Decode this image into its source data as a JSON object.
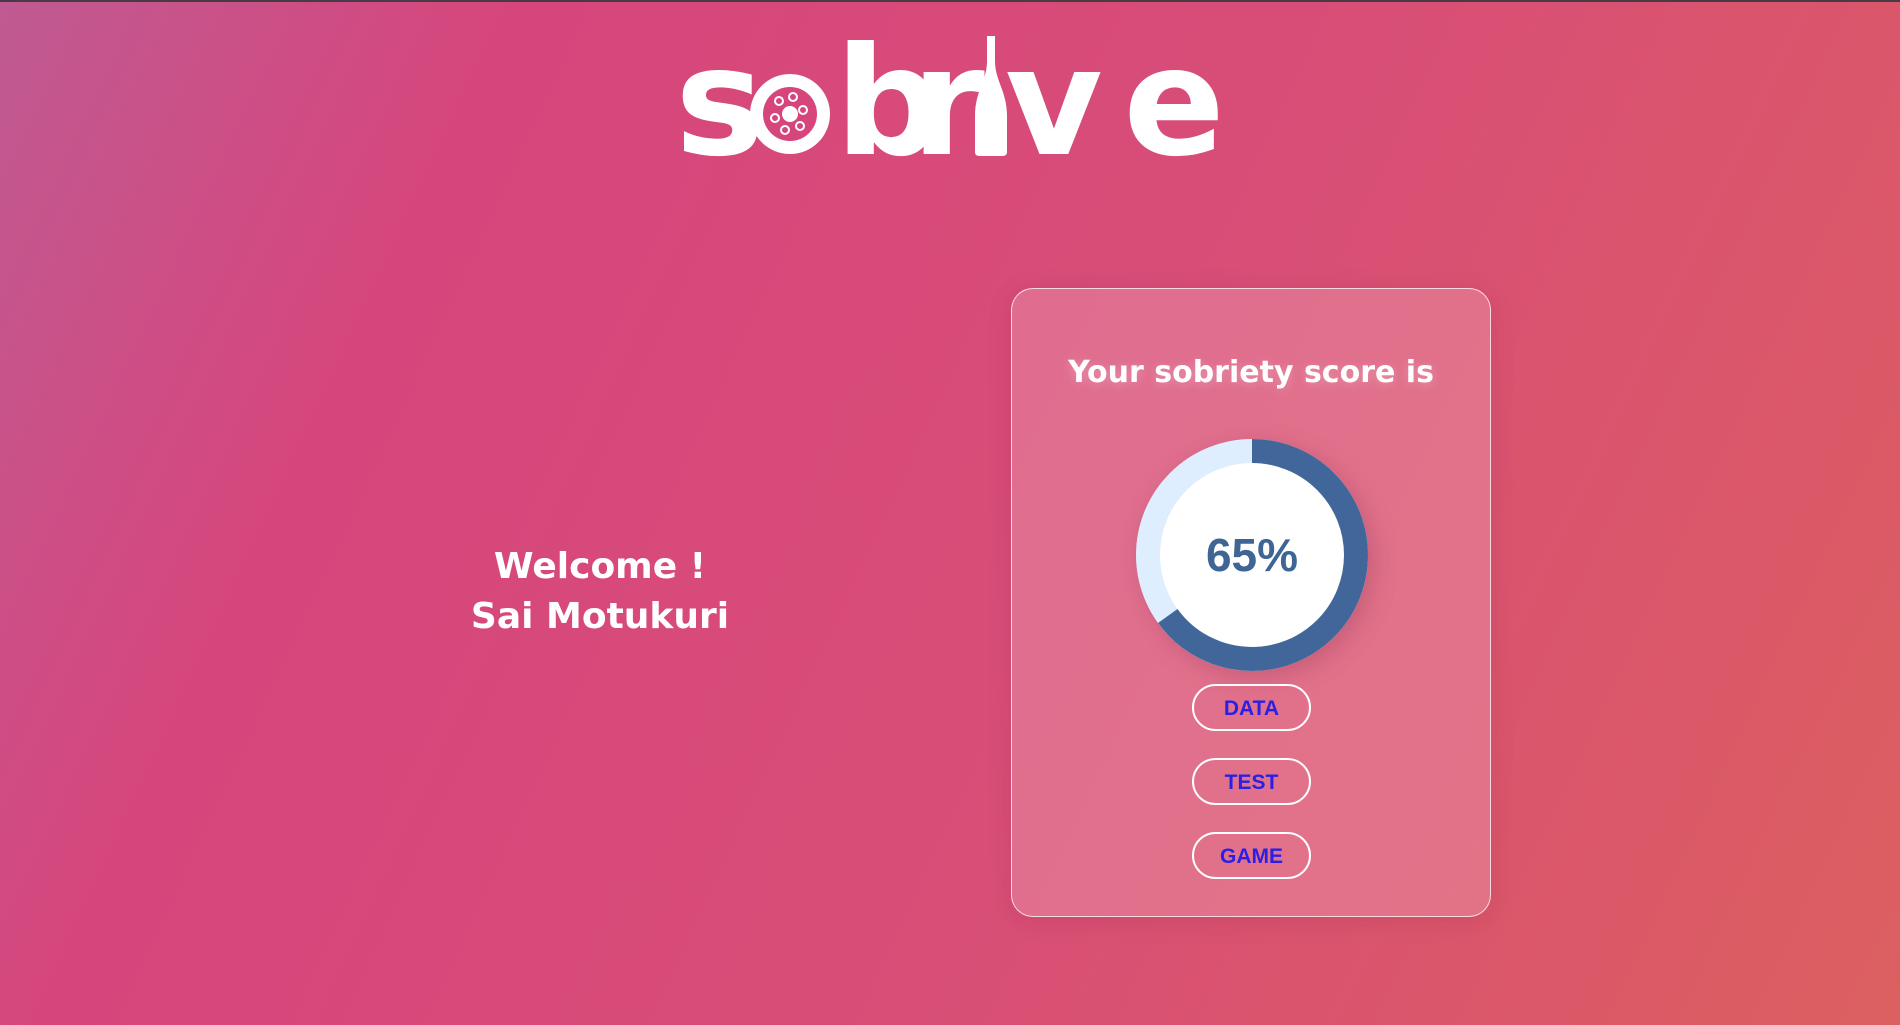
{
  "logo": {
    "text": "sobrive"
  },
  "welcome": {
    "greeting": "Welcome !",
    "user_name": "Sai Motukuri"
  },
  "card": {
    "title": "Your sobriety score is",
    "score_label": "65%",
    "score_value": 65,
    "buttons": [
      {
        "label": "DATA"
      },
      {
        "label": "TEST"
      },
      {
        "label": "GAME"
      }
    ]
  },
  "colors": {
    "ring_fill": "#41679a",
    "ring_track": "#dfeefe",
    "button_text": "#2a1fe6"
  }
}
